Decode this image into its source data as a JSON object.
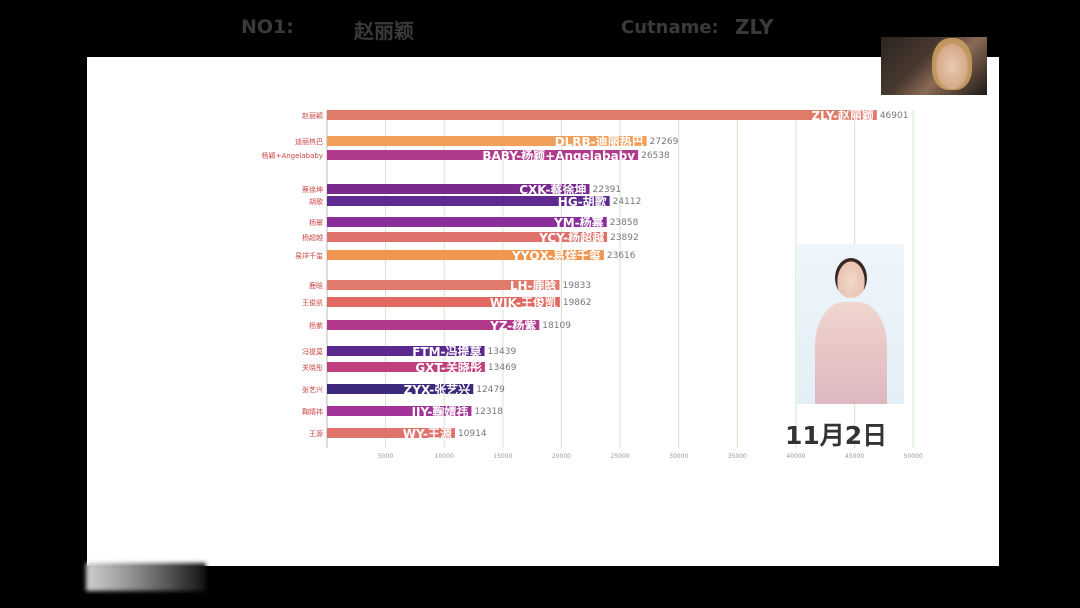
{
  "header": {
    "rank_label": "NO1:",
    "rank_name": "赵丽颖",
    "cutname_label": "Cutname:",
    "cutname_value": "ZLY"
  },
  "date": "11月2日",
  "chart_data": {
    "type": "bar",
    "orientation": "horizontal",
    "xlim": [
      0,
      47000
    ],
    "grid": true,
    "x_ticks": [
      5000,
      10000,
      15000,
      20000,
      25000,
      30000,
      35000,
      40000,
      45000,
      50000
    ],
    "bars": [
      {
        "name": "赵丽颖",
        "label": "ZLY-赵丽颖",
        "value": 46901,
        "color": "#e07b6a"
      },
      {
        "name": "迪丽热巴",
        "label": "DLRB-迪丽热巴",
        "value": 27269,
        "color": "#f0a05a"
      },
      {
        "name": "杨颖+Angelababy",
        "label": "BABY-杨颖+Angelababy",
        "value": 26538,
        "color": "#b03a8c"
      },
      {
        "name": "蔡徐坤",
        "label": "CXK-蔡徐坤",
        "value": 22391,
        "color": "#7a2a8c"
      },
      {
        "name": "胡歌",
        "label": "HG-胡歌",
        "value": 24112,
        "color": "#5e2a90"
      },
      {
        "name": "杨幂",
        "label": "YM-杨幂",
        "value": 23858,
        "color": "#8a2e9a"
      },
      {
        "name": "杨超越",
        "label": "YCY-杨超越",
        "value": 23892,
        "color": "#e0706a"
      },
      {
        "name": "易烊千玺",
        "label": "YYQX-易烊千玺",
        "value": 23616,
        "color": "#f0964e"
      },
      {
        "name": "鹿晗",
        "label": "LH-鹿晗",
        "value": 19833,
        "color": "#e07a6c"
      },
      {
        "name": "王俊凯",
        "label": "WJK-王俊凯",
        "value": 19862,
        "color": "#e06a62"
      },
      {
        "name": "杨紫",
        "label": "YZ-杨紫",
        "value": 18109,
        "color": "#b2398c"
      },
      {
        "name": "冯提莫",
        "label": "FTM-冯提莫",
        "value": 13439,
        "color": "#5c2a8e"
      },
      {
        "name": "关晓彤",
        "label": "GXT-关晓彤",
        "value": 13469,
        "color": "#c0407e"
      },
      {
        "name": "张艺兴",
        "label": "ZYX-张艺兴",
        "value": 12479,
        "color": "#3e2a7c"
      },
      {
        "name": "鞠婧祎",
        "label": "JJY-鞠婧祎",
        "value": 12318,
        "color": "#a2349a"
      },
      {
        "name": "王源",
        "label": "WY-王源",
        "value": 10914,
        "color": "#e0746c"
      }
    ]
  }
}
